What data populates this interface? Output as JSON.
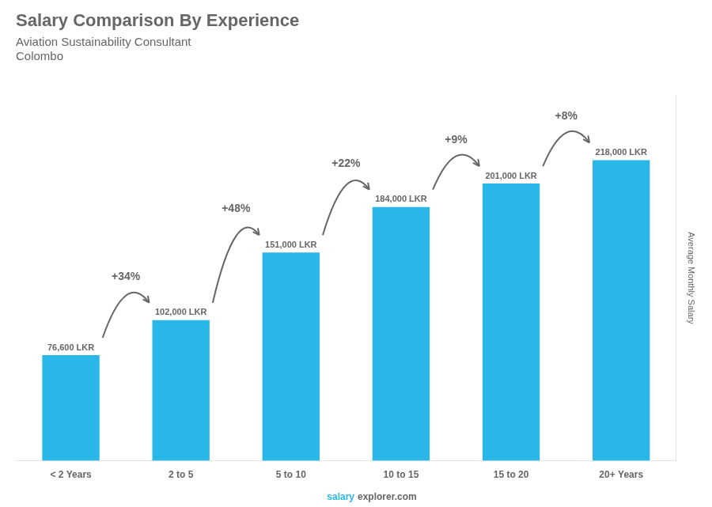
{
  "chart_data": {
    "type": "bar",
    "title": "Salary Comparison By Experience",
    "subtitle": "Aviation Sustainability Consultant",
    "annotations": [
      "Colombo"
    ],
    "footer": [
      "salary",
      "explorer.com"
    ],
    "ylabel": "Average Monthly Salary",
    "categories": [
      "< 2 Years",
      "2 to 5",
      "5 to 10",
      "10 to 15",
      "15 to 20",
      "20+ Years"
    ],
    "values": [
      76600,
      102000,
      151000,
      184000,
      201000,
      218000
    ],
    "value_labels": [
      "76,600 LKR",
      "102,000 LKR",
      "151,000 LKR",
      "184,000 LKR",
      "201,000 LKR",
      "218,000 LKR"
    ],
    "data_labels": true,
    "change_labels": [
      "+34%",
      "+48%",
      "+22%",
      "+9%",
      "+8%"
    ],
    "color": "#29b6e8",
    "ylim": [
      0,
      265000
    ],
    "grid": false,
    "tick_labels": "x"
  }
}
